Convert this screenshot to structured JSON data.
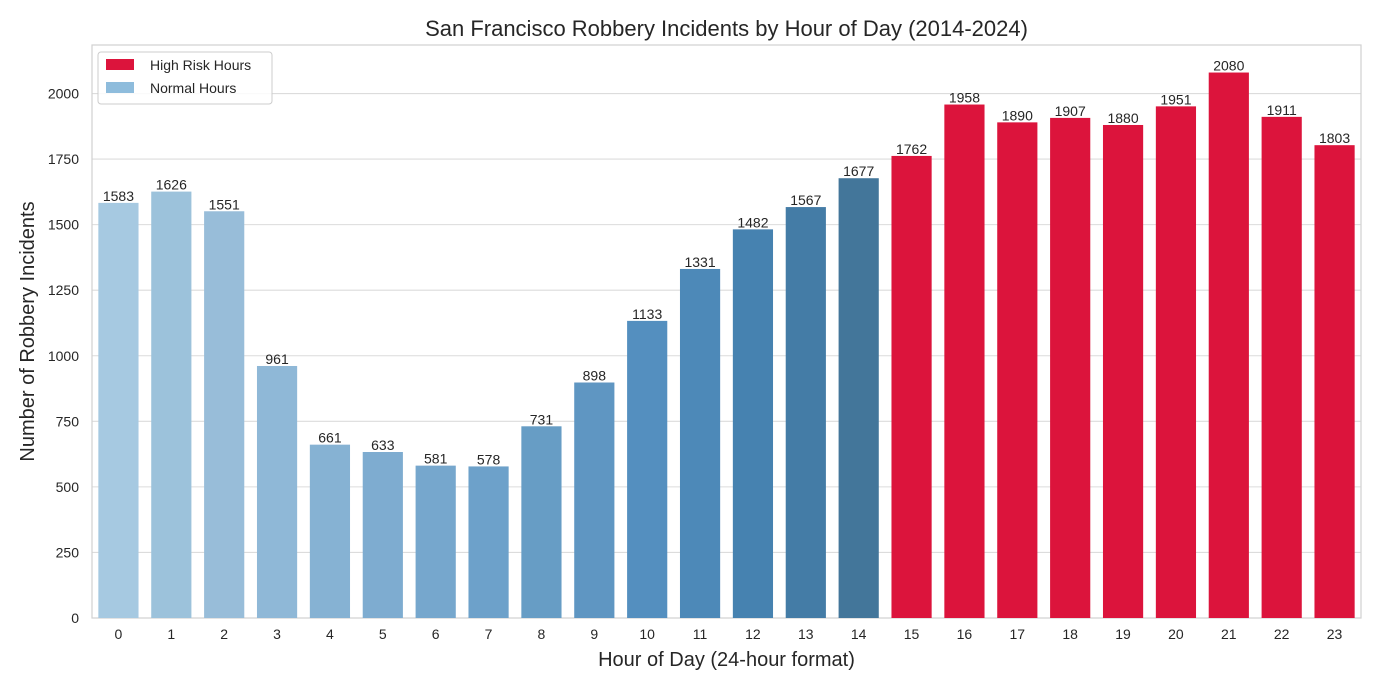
{
  "chart_data": {
    "type": "bar",
    "title": "San Francisco Robbery Incidents by Hour of Day (2014-2024)",
    "xlabel": "Hour of Day (24-hour format)",
    "ylabel": "Number of Robbery Incidents",
    "categories": [
      "0",
      "1",
      "2",
      "3",
      "4",
      "5",
      "6",
      "7",
      "8",
      "9",
      "10",
      "11",
      "12",
      "13",
      "14",
      "15",
      "16",
      "17",
      "18",
      "19",
      "20",
      "21",
      "22",
      "23"
    ],
    "values": [
      1583,
      1626,
      1551,
      961,
      661,
      633,
      581,
      578,
      731,
      898,
      1133,
      1331,
      1482,
      1567,
      1677,
      1762,
      1958,
      1890,
      1907,
      1880,
      1951,
      2080,
      1911,
      1803
    ],
    "high_risk": [
      false,
      false,
      false,
      false,
      false,
      false,
      false,
      false,
      false,
      false,
      false,
      false,
      false,
      false,
      false,
      true,
      true,
      true,
      true,
      true,
      true,
      true,
      true,
      true
    ],
    "ylim": [
      0,
      2185
    ],
    "yticks": [
      0,
      250,
      500,
      750,
      1000,
      1250,
      1500,
      1750,
      2000
    ],
    "grid": "horizontal",
    "legend": {
      "placement": "top-left",
      "entries": [
        {
          "label": "High Risk Hours",
          "color": "#dc143c"
        },
        {
          "label": "Normal Hours",
          "color": "#8ebcdc"
        }
      ]
    },
    "colors": {
      "high_risk": "#dc143c",
      "normal_gradient": [
        "#a6c9e1",
        "#9cc2db",
        "#98bdd9",
        "#8fb8d7",
        "#86b2d3",
        "#7eacd0",
        "#76a7cd",
        "#6da1ca",
        "#679dc5",
        "#5f96c2",
        "#548fbf",
        "#4d89b8",
        "#4682b0",
        "#447ca6",
        "#43769a"
      ]
    }
  }
}
